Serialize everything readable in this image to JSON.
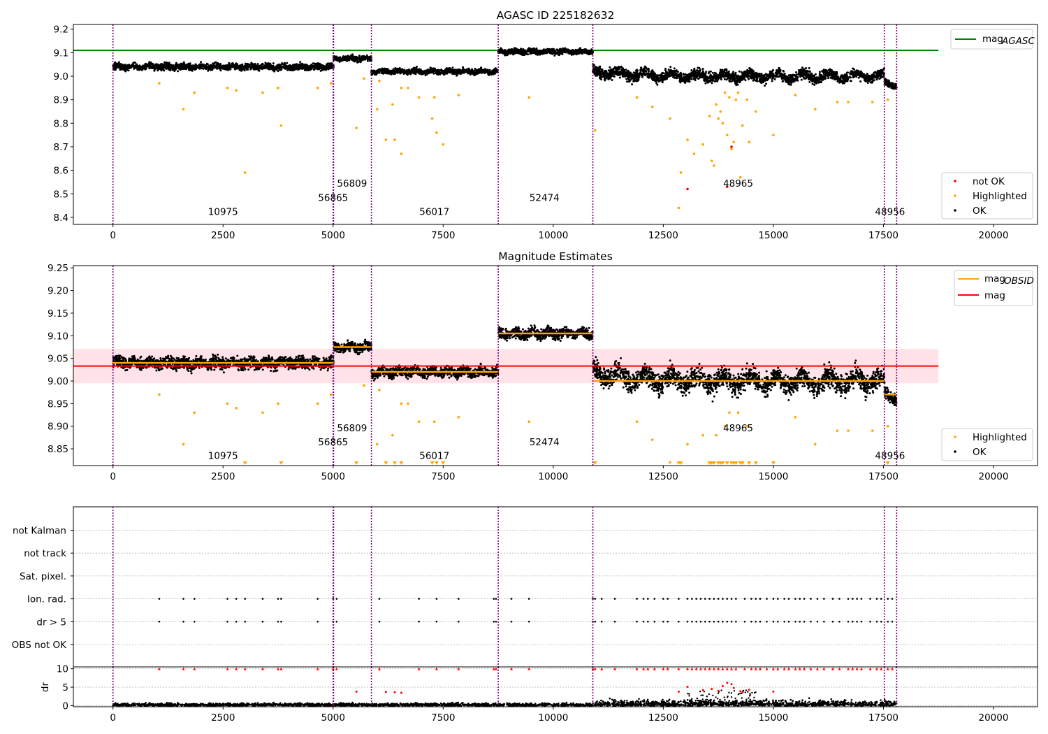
{
  "figure": {
    "top_title": "AGASC ID 225182632",
    "middle_title": "Magnitude Estimates"
  },
  "colors": {
    "ok": "#000000",
    "highlighted": "#ffa500",
    "not_ok": "#ff0000",
    "agasc_line": "#008000",
    "mag_line": "#ff0000",
    "obsid_line": "#ffa500",
    "band": "#ffc0cb",
    "boundary": "#800080"
  },
  "chart_data": [
    {
      "type": "scatter",
      "title": "AGASC ID 225182632",
      "xlim": [
        -900,
        21000
      ],
      "ylim": [
        8.37,
        9.22
      ],
      "x_ticks": [
        0,
        2500,
        5000,
        7500,
        10000,
        12500,
        15000,
        17500,
        20000
      ],
      "y_ticks": [
        8.4,
        8.5,
        8.6,
        8.7,
        8.8,
        8.9,
        9.0,
        9.1,
        9.2
      ],
      "grid": false,
      "legend": [
        {
          "label": "mag",
          "sub": "AGASC",
          "kind": "line",
          "color": "#008000",
          "position": "top-right"
        },
        {
          "label": "not OK",
          "kind": "marker",
          "color": "#ff0000",
          "position": "bottom-right"
        },
        {
          "label": "Highlighted",
          "kind": "marker",
          "color": "#ffa500",
          "position": "bottom-right"
        },
        {
          "label": "OK",
          "kind": "marker",
          "color": "#000000",
          "position": "bottom-right"
        }
      ],
      "mag_agasc": 9.11,
      "mag_agasc_xrange": [
        -900,
        18750
      ],
      "observations": [
        {
          "obsid": "10975",
          "x_start": 0,
          "x_end": 5000,
          "mean": 9.04,
          "spread": 0.012,
          "label_x": 2500,
          "label_y": 8.41
        },
        {
          "obsid": "56865",
          "x_start": 5000,
          "x_end": 5010,
          "mean": 9.04,
          "spread": 0.012,
          "label_x": 5000,
          "label_y": 8.47
        },
        {
          "obsid": "56809",
          "x_start": 5010,
          "x_end": 5870,
          "mean": 9.075,
          "spread": 0.01,
          "label_x": 5430,
          "label_y": 8.53
        },
        {
          "obsid": "56017",
          "x_start": 5870,
          "x_end": 8750,
          "mean": 9.02,
          "spread": 0.01,
          "label_x": 7300,
          "label_y": 8.41
        },
        {
          "obsid": "52474",
          "x_start": 8750,
          "x_end": 10900,
          "mean": 9.105,
          "spread": 0.01,
          "label_x": 9800,
          "label_y": 8.47
        },
        {
          "obsid": "48965",
          "x_start": 10900,
          "x_end": 17520,
          "mean": 9.0,
          "spread": 0.02,
          "label_x": 14200,
          "label_y": 8.53
        },
        {
          "obsid": "48956",
          "x_start": 17520,
          "x_end": 17800,
          "mean": 8.97,
          "spread": 0.012,
          "label_x": 17650,
          "label_y": 8.41
        }
      ],
      "highlighted_points": [
        [
          1050,
          8.97
        ],
        [
          1600,
          8.86
        ],
        [
          1850,
          8.93
        ],
        [
          2600,
          8.95
        ],
        [
          2800,
          8.94
        ],
        [
          3000,
          8.59
        ],
        [
          3400,
          8.93
        ],
        [
          3750,
          8.95
        ],
        [
          3820,
          8.79
        ],
        [
          4650,
          8.95
        ],
        [
          4950,
          8.97
        ],
        [
          5530,
          8.78
        ],
        [
          5700,
          8.99
        ],
        [
          6000,
          8.86
        ],
        [
          6050,
          8.98
        ],
        [
          6200,
          8.73
        ],
        [
          6350,
          8.88
        ],
        [
          6400,
          8.73
        ],
        [
          6550,
          8.67
        ],
        [
          6550,
          8.95
        ],
        [
          6700,
          8.95
        ],
        [
          6950,
          8.91
        ],
        [
          7250,
          8.82
        ],
        [
          7300,
          8.91
        ],
        [
          7350,
          8.76
        ],
        [
          7500,
          8.71
        ],
        [
          7850,
          8.92
        ],
        [
          9450,
          8.91
        ],
        [
          10950,
          8.77
        ],
        [
          11900,
          8.91
        ],
        [
          12250,
          8.87
        ],
        [
          12650,
          8.82
        ],
        [
          12850,
          8.44
        ],
        [
          12900,
          8.59
        ],
        [
          13050,
          8.73
        ],
        [
          13200,
          8.67
        ],
        [
          13400,
          8.71
        ],
        [
          13550,
          8.83
        ],
        [
          13600,
          8.64
        ],
        [
          13650,
          8.62
        ],
        [
          13700,
          8.88
        ],
        [
          13750,
          8.82
        ],
        [
          13800,
          8.85
        ],
        [
          13850,
          8.8
        ],
        [
          13900,
          8.93
        ],
        [
          13950,
          8.75
        ],
        [
          14000,
          8.91
        ],
        [
          14050,
          8.69
        ],
        [
          14100,
          8.72
        ],
        [
          14150,
          8.9
        ],
        [
          14200,
          8.93
        ],
        [
          14250,
          8.57
        ],
        [
          14300,
          8.79
        ],
        [
          14400,
          8.9
        ],
        [
          14450,
          8.72
        ],
        [
          14600,
          8.85
        ],
        [
          15000,
          8.75
        ],
        [
          15500,
          8.92
        ],
        [
          15950,
          8.86
        ],
        [
          16450,
          8.89
        ],
        [
          16700,
          8.89
        ],
        [
          17250,
          8.89
        ],
        [
          17600,
          8.9
        ]
      ],
      "not_ok_points": [
        [
          13050,
          8.52
        ],
        [
          13950,
          8.53
        ],
        [
          14050,
          8.7
        ]
      ]
    },
    {
      "type": "scatter",
      "title": "Magnitude Estimates",
      "xlim": [
        -900,
        21000
      ],
      "ylim": [
        8.813,
        9.255
      ],
      "x_ticks": [
        0,
        2500,
        5000,
        7500,
        10000,
        12500,
        15000,
        17500,
        20000
      ],
      "y_ticks": [
        8.85,
        8.9,
        8.95,
        9.0,
        9.05,
        9.1,
        9.15,
        9.2,
        9.25
      ],
      "y_tick_labels": [
        "8.85",
        "8.90",
        "8.95",
        "9.00",
        "9.05",
        "9.10",
        "9.15",
        "9.20",
        "9.25"
      ],
      "grid": false,
      "legend": [
        {
          "label": "mag",
          "sub": "OBSID",
          "kind": "line",
          "color": "#ffa500",
          "position": "top-right"
        },
        {
          "label": "mag",
          "kind": "line",
          "color": "#ff0000",
          "position": "top-right"
        },
        {
          "label": "Highlighted",
          "kind": "marker",
          "color": "#ffa500",
          "position": "bottom-right"
        },
        {
          "label": "OK",
          "kind": "marker",
          "color": "#000000",
          "position": "bottom-right"
        }
      ],
      "mag": 9.033,
      "mag_band": [
        8.995,
        9.071
      ],
      "mag_xrange": [
        -900,
        18750
      ],
      "observations": [
        {
          "obsid": "10975",
          "x_start": 0,
          "x_end": 5000,
          "mean": 9.04,
          "spread": 0.012,
          "label_x": 2500,
          "label_y": 8.828
        },
        {
          "obsid": "56865",
          "x_start": 5000,
          "x_end": 5010,
          "mean": 9.04,
          "spread": 0.012,
          "label_x": 5000,
          "label_y": 8.858
        },
        {
          "obsid": "56809",
          "x_start": 5010,
          "x_end": 5870,
          "mean": 9.075,
          "spread": 0.01,
          "label_x": 5430,
          "label_y": 8.889
        },
        {
          "obsid": "56017",
          "x_start": 5870,
          "x_end": 8750,
          "mean": 9.02,
          "spread": 0.01,
          "label_x": 7300,
          "label_y": 8.828
        },
        {
          "obsid": "52474",
          "x_start": 8750,
          "x_end": 10900,
          "mean": 9.105,
          "spread": 0.01,
          "label_x": 9800,
          "label_y": 8.858
        },
        {
          "obsid": "48965",
          "x_start": 10900,
          "x_end": 17520,
          "mean": 9.0,
          "spread": 0.02,
          "label_x": 14200,
          "label_y": 8.889
        },
        {
          "obsid": "48956",
          "x_start": 17520,
          "x_end": 17800,
          "mean": 8.97,
          "spread": 0.012,
          "label_x": 17650,
          "label_y": 8.828
        }
      ],
      "highlighted_points": [
        [
          1050,
          8.97
        ],
        [
          1600,
          8.86
        ],
        [
          1850,
          8.93
        ],
        [
          2600,
          8.95
        ],
        [
          2800,
          8.94
        ],
        [
          3400,
          8.93
        ],
        [
          3750,
          8.95
        ],
        [
          4650,
          8.95
        ],
        [
          4950,
          8.97
        ],
        [
          5700,
          8.99
        ],
        [
          6000,
          8.86
        ],
        [
          6050,
          8.98
        ],
        [
          6350,
          8.88
        ],
        [
          6550,
          8.95
        ],
        [
          6700,
          8.95
        ],
        [
          6950,
          8.91
        ],
        [
          7300,
          8.91
        ],
        [
          7850,
          8.92
        ],
        [
          9450,
          8.91
        ],
        [
          11900,
          8.91
        ],
        [
          12250,
          8.87
        ],
        [
          12650,
          8.82
        ],
        [
          13050,
          8.86
        ],
        [
          13400,
          8.88
        ],
        [
          13700,
          8.88
        ],
        [
          13900,
          8.9
        ],
        [
          14000,
          8.93
        ],
        [
          14200,
          8.93
        ],
        [
          14400,
          8.9
        ],
        [
          15500,
          8.92
        ],
        [
          15950,
          8.86
        ],
        [
          16450,
          8.89
        ],
        [
          16700,
          8.89
        ],
        [
          17250,
          8.89
        ],
        [
          17600,
          8.9
        ]
      ],
      "below_limit_markers": [
        3000,
        3820,
        5530,
        6200,
        6400,
        6550,
        7250,
        7350,
        7500,
        10950,
        12850,
        12900,
        13550,
        13600,
        13650,
        13750,
        13800,
        13850,
        13950,
        14050,
        14100,
        14150,
        14250,
        14300,
        14450,
        14600,
        15000,
        17600
      ]
    },
    {
      "type": "scatter",
      "title": "",
      "xlim": [
        -900,
        21000
      ],
      "y_categories": [
        "OBS not OK",
        "dr > 5",
        "Ion. rad.",
        "Sat. pixel.",
        "not track",
        "not Kalman"
      ],
      "grid": true,
      "flag_points": [
        1050,
        1600,
        1850,
        2600,
        2800,
        3000,
        3400,
        3750,
        3820,
        4650,
        5000,
        5080,
        6050,
        6950,
        7350,
        7850,
        8650,
        8700,
        9050,
        9450,
        10900,
        10950,
        11100,
        11400,
        11900,
        12050,
        12150,
        12300,
        12500,
        12600,
        12850,
        13050,
        13150,
        13250,
        13350,
        13450,
        13550,
        13650,
        13750,
        13850,
        13950,
        14050,
        14150,
        14350,
        14500,
        14600,
        14700,
        14850,
        15000,
        15100,
        15250,
        15350,
        15500,
        15600,
        15700,
        15850,
        16000,
        16150,
        16350,
        16500,
        16700,
        16800,
        16900,
        17000,
        17200,
        17350,
        17450,
        17600,
        17700
      ]
    },
    {
      "type": "scatter",
      "title": "",
      "xlim": [
        -900,
        21000
      ],
      "ylim": [
        -0.3,
        10.5
      ],
      "x_ticks": [
        0,
        2500,
        5000,
        7500,
        10000,
        12500,
        15000,
        17500,
        20000
      ],
      "y_ticks": [
        0,
        5,
        10
      ],
      "ylabel": "dr",
      "grid": true,
      "dr_outliers": [
        [
          5530,
          3.8
        ],
        [
          6200,
          3.7
        ],
        [
          6400,
          3.6
        ],
        [
          6550,
          3.5
        ],
        [
          12850,
          3.8
        ],
        [
          13050,
          5.1
        ],
        [
          13400,
          4.2
        ],
        [
          13600,
          4.5
        ],
        [
          13750,
          4.0
        ],
        [
          13850,
          5.3
        ],
        [
          13950,
          6.2
        ],
        [
          14050,
          5.8
        ],
        [
          14100,
          4.8
        ],
        [
          14250,
          3.9
        ],
        [
          14300,
          3.6
        ],
        [
          14450,
          4.3
        ],
        [
          15000,
          3.8
        ]
      ],
      "dr_clipped": [
        1050,
        1600,
        1850,
        2600,
        2800,
        3000,
        3400,
        3750,
        3820,
        4650,
        5000,
        5080,
        6050,
        6950,
        7350,
        7850,
        8650,
        8700,
        9050,
        9450,
        10900,
        10950,
        11100,
        11400,
        11900,
        12050,
        12150,
        12300,
        12500,
        12600,
        12850,
        13050,
        13150,
        13250,
        13350,
        13450,
        13550,
        13650,
        13750,
        13850,
        13950,
        14050,
        14150,
        14350,
        14500,
        14600,
        14700,
        14850,
        15000,
        15100,
        15250,
        15350,
        15500,
        15600,
        15700,
        15850,
        16000,
        16150,
        16350,
        16500,
        16700,
        16800,
        16900,
        17000,
        17200,
        17350,
        17450,
        17600,
        17700
      ]
    }
  ],
  "boundaries": [
    0,
    5000,
    5010,
    5870,
    8750,
    10900,
    17520,
    17800
  ]
}
